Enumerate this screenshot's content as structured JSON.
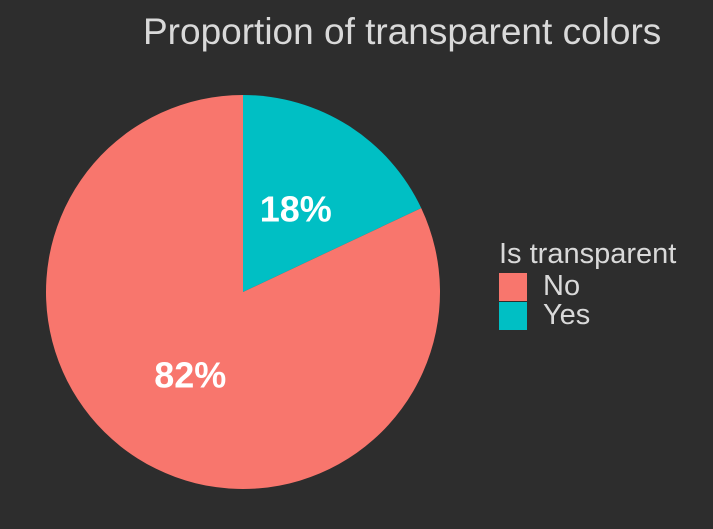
{
  "chart_data": {
    "type": "pie",
    "title": "Proportion of transparent colors",
    "legend_title": "Is transparent",
    "legend_position": "right",
    "slices": [
      {
        "name": "No",
        "value": 82,
        "label": "82%",
        "color": "#f8766d"
      },
      {
        "name": "Yes",
        "value": 18,
        "label": "18%",
        "color": "#00bfc4"
      }
    ],
    "colors": {
      "background": "#2d2d2d",
      "text": "#d9d9d9",
      "data_label": "#ffffff"
    }
  }
}
